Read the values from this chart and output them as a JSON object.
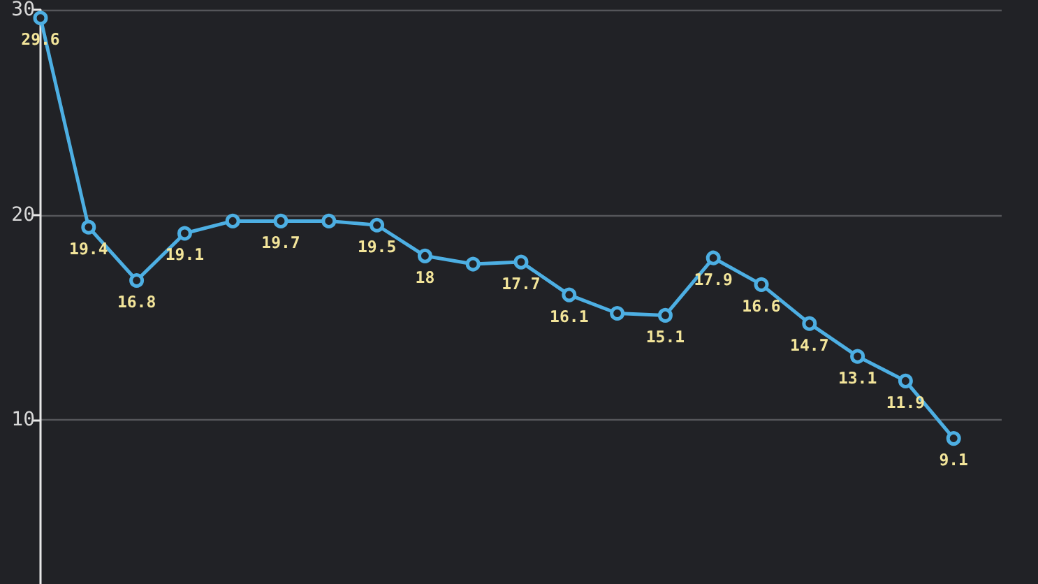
{
  "chart_data": {
    "type": "line",
    "categories": [
      null,
      null,
      null,
      null,
      null,
      null,
      null,
      null,
      null,
      null,
      null,
      null,
      null,
      null,
      null,
      null,
      null,
      null,
      null,
      null,
      null
    ],
    "series": [
      {
        "color": "#4dafe3",
        "values": [
          29.6,
          19.4,
          16.8,
          19.1,
          19.7,
          19.7,
          19.7,
          19.5,
          18,
          17.6,
          17.7,
          16.1,
          15.2,
          15.1,
          17.9,
          16.6,
          14.7,
          13.1,
          11.9,
          9.1,
          null
        ],
        "value_labels": [
          "29.6",
          "19.4",
          "16.8",
          "19.1",
          null,
          "19.7",
          null,
          "19.5",
          "18",
          null,
          "17.7",
          "16.1",
          null,
          "15.1",
          "17.9",
          "16.6",
          "14.7",
          "13.1",
          "11.9",
          "9.1",
          null
        ]
      }
    ],
    "ylim": [
      2,
      30
    ],
    "yticks": [
      10,
      20,
      30
    ],
    "grid": "y",
    "marker": "circle",
    "line_style": "solid",
    "tick_labels": "y"
  }
}
